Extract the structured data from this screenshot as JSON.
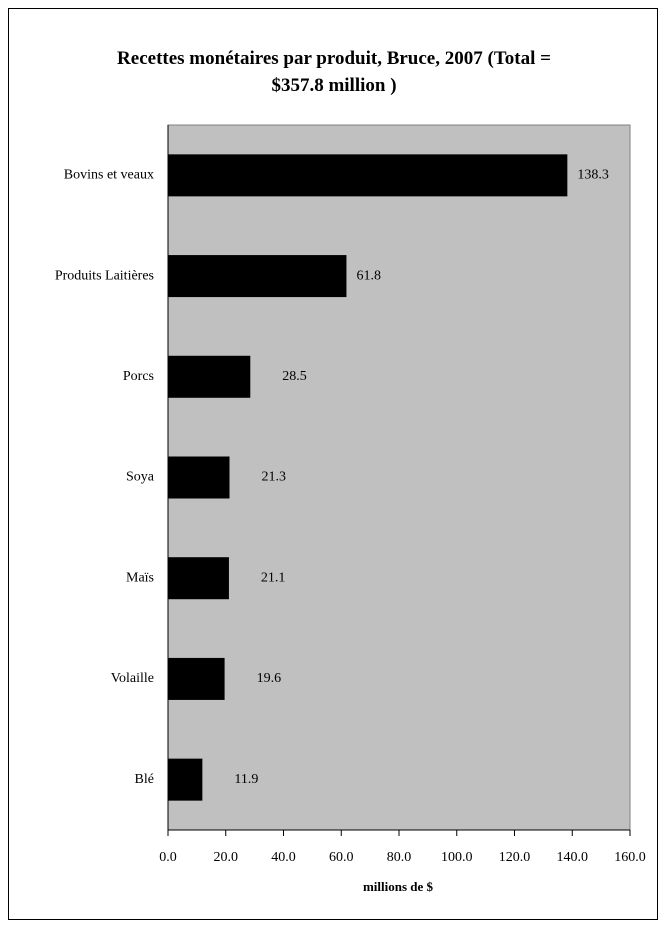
{
  "chart_data": {
    "type": "bar",
    "orientation": "horizontal",
    "title_line1": "Recettes monétaires par produit, Bruce, 2007 (Total =",
    "title_line2": "$357.8 million )",
    "categories": [
      "Bovins et veaux",
      "Produits Laitières",
      "Porcs",
      "Soya",
      "Maïs",
      "Volaille",
      "Blé"
    ],
    "values": [
      138.3,
      61.8,
      28.5,
      21.3,
      21.1,
      19.6,
      11.9
    ],
    "value_labels": [
      "138.3",
      "61.8",
      "28.5",
      "21.3",
      "21.1",
      "19.6",
      "11.9"
    ],
    "xlabel": "millions de $",
    "ylabel": "",
    "xlim": [
      0,
      160
    ],
    "ticks": [
      "0.0",
      "20.0",
      "40.0",
      "60.0",
      "80.0",
      "100.0",
      "120.0",
      "140.0",
      "160.0"
    ],
    "tick_values": [
      0,
      20,
      40,
      60,
      80,
      100,
      120,
      140,
      160
    ],
    "grid": false,
    "legend": "none",
    "colors": {
      "plot_area": "#c0c0c0",
      "bar": "#000000",
      "background": "#ffffff"
    }
  }
}
